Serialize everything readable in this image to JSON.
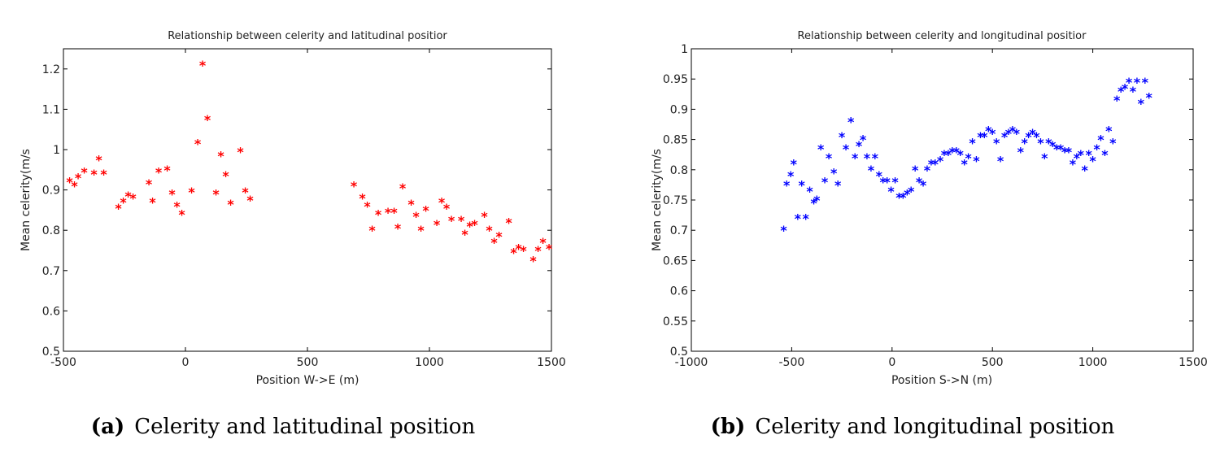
{
  "colors": {
    "series_a": "#ff0000",
    "series_b": "#0000ff",
    "axes": "#000000"
  },
  "chart_data": [
    {
      "type": "scatter",
      "title": "Relationship between celerity and latitudinal positior",
      "xlabel": "Position W->E (m)",
      "ylabel": "Mean celerity(m/s",
      "xlim": [
        -500,
        1500
      ],
      "ylim": [
        0.5,
        1.25
      ],
      "xticks": [
        -500,
        0,
        500,
        1000,
        1500
      ],
      "xtick_labels": [
        "-500",
        "0",
        "500",
        "1000",
        "1500"
      ],
      "yticks": [
        0.5,
        0.6,
        0.7,
        0.8,
        0.9,
        1.0,
        1.1,
        1.2
      ],
      "ytick_labels": [
        "0.5",
        "0.6",
        "0.7",
        "0.8",
        "0.9",
        "1",
        "1.1",
        "1.2"
      ],
      "marker": "*",
      "color": "#ff0000",
      "caption_label": "(a)",
      "caption_text": "Celerity and latitudinal position",
      "points": [
        [
          -475,
          0.92
        ],
        [
          -455,
          0.91
        ],
        [
          -440,
          0.93
        ],
        [
          -415,
          0.945
        ],
        [
          -375,
          0.94
        ],
        [
          -355,
          0.975
        ],
        [
          -335,
          0.94
        ],
        [
          -275,
          0.855
        ],
        [
          -255,
          0.87
        ],
        [
          -235,
          0.885
        ],
        [
          -215,
          0.88
        ],
        [
          -150,
          0.915
        ],
        [
          -135,
          0.87
        ],
        [
          -110,
          0.945
        ],
        [
          -75,
          0.95
        ],
        [
          -55,
          0.89
        ],
        [
          -35,
          0.86
        ],
        [
          -15,
          0.84
        ],
        [
          25,
          0.895
        ],
        [
          50,
          1.015
        ],
        [
          70,
          1.21
        ],
        [
          90,
          1.075
        ],
        [
          125,
          0.89
        ],
        [
          145,
          0.985
        ],
        [
          165,
          0.935
        ],
        [
          185,
          0.865
        ],
        [
          225,
          0.995
        ],
        [
          245,
          0.895
        ],
        [
          265,
          0.875
        ],
        [
          690,
          0.91
        ],
        [
          725,
          0.88
        ],
        [
          745,
          0.86
        ],
        [
          765,
          0.8
        ],
        [
          790,
          0.84
        ],
        [
          830,
          0.845
        ],
        [
          855,
          0.845
        ],
        [
          870,
          0.805
        ],
        [
          890,
          0.905
        ],
        [
          925,
          0.865
        ],
        [
          945,
          0.835
        ],
        [
          965,
          0.8
        ],
        [
          985,
          0.85
        ],
        [
          1030,
          0.815
        ],
        [
          1050,
          0.87
        ],
        [
          1070,
          0.855
        ],
        [
          1090,
          0.825
        ],
        [
          1130,
          0.825
        ],
        [
          1145,
          0.79
        ],
        [
          1165,
          0.81
        ],
        [
          1185,
          0.815
        ],
        [
          1225,
          0.835
        ],
        [
          1245,
          0.8
        ],
        [
          1265,
          0.77
        ],
        [
          1285,
          0.785
        ],
        [
          1325,
          0.82
        ],
        [
          1345,
          0.745
        ],
        [
          1365,
          0.755
        ],
        [
          1385,
          0.75
        ],
        [
          1425,
          0.725
        ],
        [
          1445,
          0.75
        ],
        [
          1465,
          0.77
        ],
        [
          1490,
          0.755
        ]
      ]
    },
    {
      "type": "scatter",
      "title": "Relationship between celerity and longitudinal positior",
      "xlabel": "Position S->N (m)",
      "ylabel": "Mean celerity(m/s",
      "xlim": [
        -1000,
        1500
      ],
      "ylim": [
        0.5,
        1.0
      ],
      "xticks": [
        -1000,
        -500,
        0,
        500,
        1000,
        1500
      ],
      "xtick_labels": [
        "-1000",
        "-500",
        "0",
        "500",
        "1000",
        "1500"
      ],
      "yticks": [
        0.5,
        0.55,
        0.6,
        0.65,
        0.7,
        0.75,
        0.8,
        0.85,
        0.9,
        0.95,
        1.0
      ],
      "ytick_labels": [
        "0.5",
        "0.55",
        "0.6",
        "0.65",
        "0.7",
        "0.75",
        "0.8",
        "0.85",
        "0.9",
        "0.95",
        "1"
      ],
      "marker": "*",
      "color": "#0000ff",
      "caption_label": "(b)",
      "caption_text": "Celerity and longitudinal position",
      "points": [
        [
          -540,
          0.7
        ],
        [
          -525,
          0.775
        ],
        [
          -505,
          0.79
        ],
        [
          -490,
          0.81
        ],
        [
          -470,
          0.72
        ],
        [
          -450,
          0.775
        ],
        [
          -430,
          0.72
        ],
        [
          -410,
          0.765
        ],
        [
          -390,
          0.745
        ],
        [
          -375,
          0.75
        ],
        [
          -355,
          0.835
        ],
        [
          -335,
          0.78
        ],
        [
          -315,
          0.82
        ],
        [
          -290,
          0.795
        ],
        [
          -270,
          0.775
        ],
        [
          -250,
          0.855
        ],
        [
          -230,
          0.835
        ],
        [
          -205,
          0.88
        ],
        [
          -185,
          0.82
        ],
        [
          -165,
          0.84
        ],
        [
          -145,
          0.85
        ],
        [
          -125,
          0.82
        ],
        [
          -105,
          0.8
        ],
        [
          -85,
          0.82
        ],
        [
          -65,
          0.79
        ],
        [
          -45,
          0.78
        ],
        [
          -25,
          0.78
        ],
        [
          -5,
          0.765
        ],
        [
          15,
          0.78
        ],
        [
          35,
          0.755
        ],
        [
          55,
          0.755
        ],
        [
          75,
          0.76
        ],
        [
          95,
          0.765
        ],
        [
          115,
          0.8
        ],
        [
          135,
          0.78
        ],
        [
          155,
          0.775
        ],
        [
          175,
          0.8
        ],
        [
          195,
          0.81
        ],
        [
          215,
          0.81
        ],
        [
          240,
          0.815
        ],
        [
          260,
          0.825
        ],
        [
          280,
          0.825
        ],
        [
          300,
          0.83
        ],
        [
          320,
          0.83
        ],
        [
          340,
          0.825
        ],
        [
          360,
          0.81
        ],
        [
          380,
          0.82
        ],
        [
          400,
          0.845
        ],
        [
          420,
          0.815
        ],
        [
          440,
          0.855
        ],
        [
          460,
          0.855
        ],
        [
          480,
          0.865
        ],
        [
          500,
          0.86
        ],
        [
          520,
          0.845
        ],
        [
          540,
          0.815
        ],
        [
          560,
          0.855
        ],
        [
          580,
          0.86
        ],
        [
          600,
          0.865
        ],
        [
          620,
          0.86
        ],
        [
          640,
          0.83
        ],
        [
          660,
          0.845
        ],
        [
          680,
          0.855
        ],
        [
          700,
          0.86
        ],
        [
          720,
          0.855
        ],
        [
          740,
          0.845
        ],
        [
          760,
          0.82
        ],
        [
          780,
          0.845
        ],
        [
          800,
          0.84
        ],
        [
          820,
          0.835
        ],
        [
          840,
          0.835
        ],
        [
          860,
          0.83
        ],
        [
          880,
          0.83
        ],
        [
          900,
          0.81
        ],
        [
          920,
          0.82
        ],
        [
          940,
          0.825
        ],
        [
          960,
          0.8
        ],
        [
          980,
          0.825
        ],
        [
          1000,
          0.815
        ],
        [
          1020,
          0.835
        ],
        [
          1040,
          0.85
        ],
        [
          1060,
          0.825
        ],
        [
          1080,
          0.865
        ],
        [
          1100,
          0.845
        ],
        [
          1120,
          0.915
        ],
        [
          1140,
          0.93
        ],
        [
          1160,
          0.935
        ],
        [
          1180,
          0.945
        ],
        [
          1200,
          0.93
        ],
        [
          1220,
          0.945
        ],
        [
          1240,
          0.91
        ],
        [
          1260,
          0.945
        ],
        [
          1280,
          0.92
        ]
      ]
    }
  ]
}
